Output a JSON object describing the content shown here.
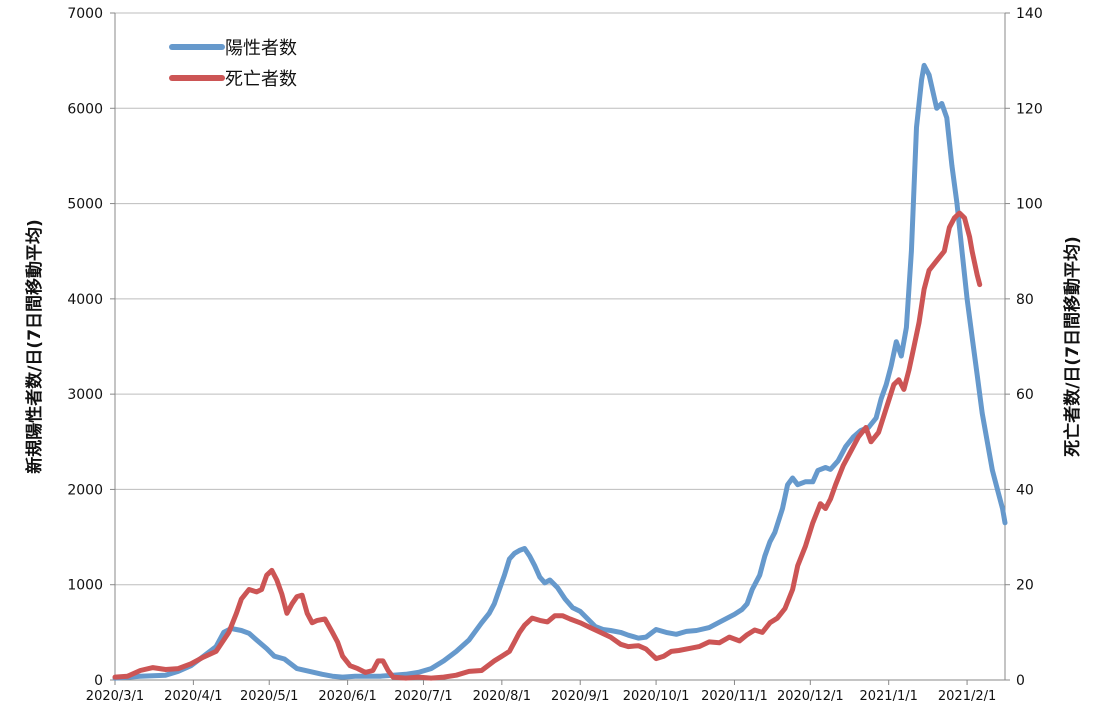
{
  "chart_data": {
    "type": "line",
    "x_labels": [
      "2020/3/1",
      "2020/4/1",
      "2020/5/1",
      "2020/6/1",
      "2020/7/1",
      "2020/8/1",
      "2020/9/1",
      "2020/10/1",
      "2020/11/1",
      "2020/12/1",
      "2021/1/1",
      "2021/2/1"
    ],
    "x_tick_days": [
      0,
      31,
      61,
      92,
      122,
      153,
      184,
      214,
      245,
      275,
      306,
      337
    ],
    "y_left": {
      "label": "新規陽性者数/日(7日間移動平均)",
      "min": 0,
      "max": 7000,
      "ticks": [
        0,
        1000,
        2000,
        3000,
        4000,
        5000,
        6000,
        7000
      ]
    },
    "y_right": {
      "label": "死亡者数/日(7日間移動平均)",
      "min": 0,
      "max": 140,
      "ticks": [
        0,
        20,
        40,
        60,
        80,
        100,
        120,
        140
      ]
    },
    "grid": true,
    "legend_position": "top-left",
    "series": [
      {
        "name": "陽性者数",
        "axis": "left",
        "color": "#6699cc",
        "points": [
          [
            0,
            20
          ],
          [
            10,
            40
          ],
          [
            20,
            50
          ],
          [
            25,
            90
          ],
          [
            30,
            150
          ],
          [
            35,
            250
          ],
          [
            40,
            350
          ],
          [
            43,
            500
          ],
          [
            46,
            540
          ],
          [
            50,
            520
          ],
          [
            53,
            490
          ],
          [
            56,
            420
          ],
          [
            60,
            330
          ],
          [
            63,
            250
          ],
          [
            67,
            220
          ],
          [
            72,
            120
          ],
          [
            77,
            90
          ],
          [
            82,
            60
          ],
          [
            86,
            40
          ],
          [
            90,
            30
          ],
          [
            95,
            40
          ],
          [
            100,
            40
          ],
          [
            105,
            40
          ],
          [
            110,
            50
          ],
          [
            115,
            60
          ],
          [
            120,
            80
          ],
          [
            125,
            120
          ],
          [
            130,
            200
          ],
          [
            135,
            300
          ],
          [
            140,
            420
          ],
          [
            145,
            600
          ],
          [
            148,
            700
          ],
          [
            150,
            800
          ],
          [
            152,
            950
          ],
          [
            154,
            1100
          ],
          [
            156,
            1270
          ],
          [
            158,
            1330
          ],
          [
            160,
            1360
          ],
          [
            162,
            1380
          ],
          [
            164,
            1300
          ],
          [
            166,
            1200
          ],
          [
            168,
            1080
          ],
          [
            170,
            1020
          ],
          [
            172,
            1050
          ],
          [
            175,
            970
          ],
          [
            178,
            850
          ],
          [
            181,
            760
          ],
          [
            184,
            720
          ],
          [
            187,
            640
          ],
          [
            190,
            560
          ],
          [
            193,
            530
          ],
          [
            196,
            520
          ],
          [
            200,
            500
          ],
          [
            203,
            470
          ],
          [
            207,
            440
          ],
          [
            210,
            450
          ],
          [
            214,
            530
          ],
          [
            218,
            500
          ],
          [
            222,
            480
          ],
          [
            226,
            510
          ],
          [
            230,
            520
          ],
          [
            235,
            550
          ],
          [
            240,
            620
          ],
          [
            245,
            690
          ],
          [
            248,
            740
          ],
          [
            250,
            800
          ],
          [
            252,
            950
          ],
          [
            255,
            1100
          ],
          [
            257,
            1300
          ],
          [
            259,
            1450
          ],
          [
            261,
            1550
          ],
          [
            264,
            1800
          ],
          [
            266,
            2050
          ],
          [
            268,
            2120
          ],
          [
            270,
            2050
          ],
          [
            273,
            2080
          ],
          [
            276,
            2080
          ],
          [
            278,
            2200
          ],
          [
            281,
            2230
          ],
          [
            283,
            2210
          ],
          [
            286,
            2300
          ],
          [
            289,
            2450
          ],
          [
            292,
            2550
          ],
          [
            295,
            2620
          ],
          [
            298,
            2650
          ],
          [
            301,
            2750
          ],
          [
            303,
            2950
          ],
          [
            305,
            3100
          ],
          [
            307,
            3300
          ],
          [
            309,
            3550
          ],
          [
            311,
            3400
          ],
          [
            313,
            3700
          ],
          [
            315,
            4500
          ],
          [
            317,
            5800
          ],
          [
            319,
            6300
          ],
          [
            320,
            6450
          ],
          [
            322,
            6350
          ],
          [
            325,
            6000
          ],
          [
            327,
            6050
          ],
          [
            329,
            5900
          ],
          [
            331,
            5400
          ],
          [
            333,
            5000
          ],
          [
            335,
            4500
          ],
          [
            337,
            4000
          ],
          [
            339,
            3600
          ],
          [
            341,
            3200
          ],
          [
            343,
            2800
          ],
          [
            345,
            2500
          ],
          [
            347,
            2200
          ],
          [
            349,
            2000
          ],
          [
            351,
            1800
          ],
          [
            352,
            1650
          ]
        ]
      },
      {
        "name": "死亡者数",
        "axis": "right",
        "color": "#cc5555",
        "points": [
          [
            0,
            0.6
          ],
          [
            5,
            0.8
          ],
          [
            10,
            2
          ],
          [
            15,
            2.6
          ],
          [
            20,
            2.2
          ],
          [
            25,
            2.4
          ],
          [
            30,
            3.4
          ],
          [
            35,
            4.8
          ],
          [
            40,
            6
          ],
          [
            45,
            10
          ],
          [
            48,
            14
          ],
          [
            50,
            17
          ],
          [
            53,
            19
          ],
          [
            56,
            18.5
          ],
          [
            58,
            19
          ],
          [
            60,
            22
          ],
          [
            62,
            23
          ],
          [
            64,
            21
          ],
          [
            66,
            18
          ],
          [
            68,
            14
          ],
          [
            70,
            16
          ],
          [
            72,
            17.5
          ],
          [
            74,
            17.8
          ],
          [
            76,
            14
          ],
          [
            78,
            12
          ],
          [
            80,
            12.5
          ],
          [
            83,
            12.8
          ],
          [
            86,
            10
          ],
          [
            88,
            8
          ],
          [
            90,
            5
          ],
          [
            93,
            3
          ],
          [
            96,
            2.4
          ],
          [
            99,
            1.6
          ],
          [
            102,
            2
          ],
          [
            104,
            4
          ],
          [
            106,
            4
          ],
          [
            108,
            2
          ],
          [
            110,
            0.6
          ],
          [
            115,
            0.4
          ],
          [
            120,
            0.6
          ],
          [
            125,
            0.4
          ],
          [
            130,
            0.6
          ],
          [
            135,
            1
          ],
          [
            140,
            1.8
          ],
          [
            145,
            2
          ],
          [
            150,
            4
          ],
          [
            153,
            5
          ],
          [
            156,
            6
          ],
          [
            158,
            8
          ],
          [
            160,
            10
          ],
          [
            162,
            11.5
          ],
          [
            165,
            13
          ],
          [
            168,
            12.5
          ],
          [
            171,
            12.2
          ],
          [
            174,
            13.5
          ],
          [
            177,
            13.5
          ],
          [
            180,
            12.8
          ],
          [
            184,
            12
          ],
          [
            188,
            11
          ],
          [
            192,
            10
          ],
          [
            196,
            9
          ],
          [
            200,
            7.5
          ],
          [
            203,
            7
          ],
          [
            207,
            7.2
          ],
          [
            210,
            6.5
          ],
          [
            214,
            4.5
          ],
          [
            217,
            5
          ],
          [
            220,
            6
          ],
          [
            223,
            6.2
          ],
          [
            227,
            6.6
          ],
          [
            231,
            7
          ],
          [
            235,
            8
          ],
          [
            239,
            7.8
          ],
          [
            243,
            9
          ],
          [
            247,
            8.2
          ],
          [
            250,
            9.5
          ],
          [
            253,
            10.5
          ],
          [
            256,
            10
          ],
          [
            259,
            12
          ],
          [
            262,
            13
          ],
          [
            265,
            15
          ],
          [
            268,
            19
          ],
          [
            270,
            24
          ],
          [
            273,
            28
          ],
          [
            276,
            33
          ],
          [
            279,
            37
          ],
          [
            281,
            36
          ],
          [
            283,
            38
          ],
          [
            285,
            41
          ],
          [
            288,
            45
          ],
          [
            291,
            48
          ],
          [
            294,
            51
          ],
          [
            297,
            53
          ],
          [
            299,
            50
          ],
          [
            302,
            52
          ],
          [
            305,
            57
          ],
          [
            308,
            62
          ],
          [
            310,
            63
          ],
          [
            312,
            61
          ],
          [
            314,
            65
          ],
          [
            316,
            70
          ],
          [
            318,
            75
          ],
          [
            320,
            82
          ],
          [
            322,
            86
          ],
          [
            325,
            88
          ],
          [
            328,
            90
          ],
          [
            330,
            95
          ],
          [
            332,
            97
          ],
          [
            334,
            98
          ],
          [
            336,
            97
          ],
          [
            338,
            93
          ],
          [
            339,
            90
          ],
          [
            341,
            85
          ],
          [
            342,
            83
          ]
        ]
      }
    ]
  }
}
